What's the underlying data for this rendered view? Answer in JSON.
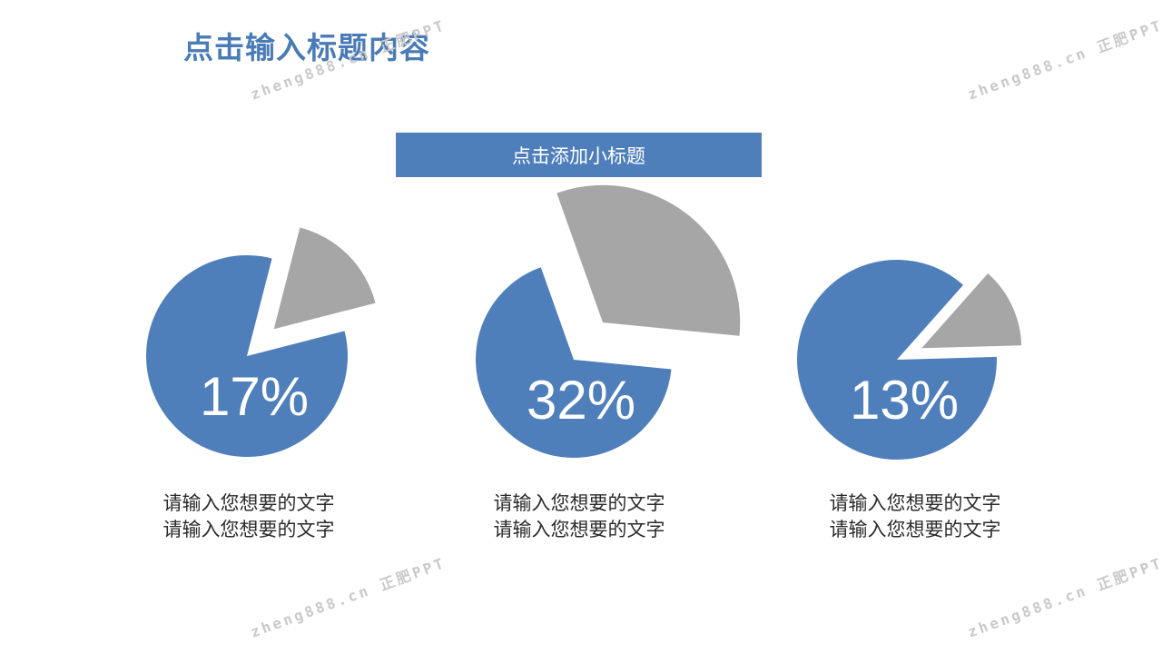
{
  "page": {
    "title": "点击输入标题内容",
    "subtitle": "点击添加小标题",
    "watermark": "zheng888.cn 正肥PPT"
  },
  "colors": {
    "accent": "#4f7fbb",
    "slice": "#a6a6a6",
    "text": "#2b2b2b",
    "title": "#4a7bb7"
  },
  "chart_data": [
    {
      "type": "pie",
      "slices": [
        {
          "value": 17,
          "color": "#a6a6a6",
          "exploded": true
        },
        {
          "value": 83,
          "color": "#4f7fbb"
        }
      ],
      "label": "17%",
      "captions": [
        "请输入您想要的文字",
        "请输入您想要的文字"
      ]
    },
    {
      "type": "pie",
      "slices": [
        {
          "value": 32,
          "color": "#a6a6a6",
          "exploded": true
        },
        {
          "value": 68,
          "color": "#4f7fbb"
        }
      ],
      "label": "32%",
      "captions": [
        "请输入您想要的文字",
        "请输入您想要的文字"
      ]
    },
    {
      "type": "pie",
      "slices": [
        {
          "value": 13,
          "color": "#a6a6a6",
          "exploded": true
        },
        {
          "value": 87,
          "color": "#4f7fbb"
        }
      ],
      "label": "13%",
      "captions": [
        "请输入您想要的文字",
        "请输入您想要的文字"
      ]
    }
  ]
}
